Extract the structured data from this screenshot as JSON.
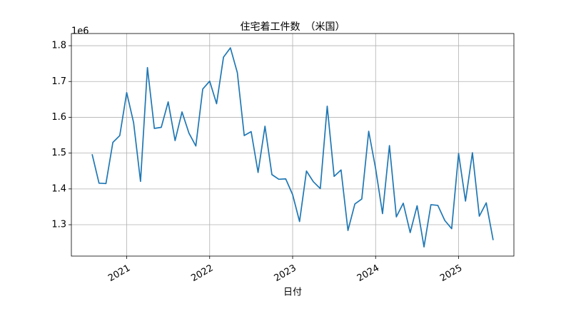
{
  "chart_data": {
    "type": "line",
    "title": "住宅着工件数　（米国）",
    "xlabel": "日付",
    "y_offset_label": "1e6",
    "color": "#1f77b4",
    "grid": true,
    "x": [
      "2020-08",
      "2020-09",
      "2020-10",
      "2020-11",
      "2020-12",
      "2021-01",
      "2021-02",
      "2021-03",
      "2021-04",
      "2021-05",
      "2021-06",
      "2021-07",
      "2021-08",
      "2021-09",
      "2021-10",
      "2021-11",
      "2021-12",
      "2022-01",
      "2022-02",
      "2022-03",
      "2022-04",
      "2022-05",
      "2022-06",
      "2022-07",
      "2022-08",
      "2022-09",
      "2022-10",
      "2022-11",
      "2022-12",
      "2023-01",
      "2023-02",
      "2023-03",
      "2023-04",
      "2023-05",
      "2023-06",
      "2023-07",
      "2023-08",
      "2023-09",
      "2023-10",
      "2023-11",
      "2023-12",
      "2024-01",
      "2024-02",
      "2024-03",
      "2024-04",
      "2024-05",
      "2024-06",
      "2024-07",
      "2024-08",
      "2024-09",
      "2024-10",
      "2024-11",
      "2024-12",
      "2025-01",
      "2025-02",
      "2025-03",
      "2025-04",
      "2025-05",
      "2025-06"
    ],
    "values": [
      1497000,
      1416000,
      1415000,
      1530000,
      1549000,
      1669000,
      1585000,
      1421000,
      1739000,
      1569000,
      1572000,
      1643000,
      1535000,
      1615000,
      1556000,
      1520000,
      1679000,
      1701000,
      1638000,
      1768000,
      1794000,
      1725000,
      1549000,
      1560000,
      1446000,
      1575000,
      1440000,
      1427000,
      1428000,
      1384000,
      1309000,
      1450000,
      1420000,
      1401000,
      1631000,
      1435000,
      1453000,
      1284000,
      1358000,
      1372000,
      1561000,
      1457000,
      1331000,
      1521000,
      1322000,
      1360000,
      1278000,
      1353000,
      1238000,
      1356000,
      1354000,
      1312000,
      1289000,
      1499000,
      1366000,
      1501000,
      1324000,
      1361000,
      1257000
    ],
    "xlim": [
      "2020-05",
      "2025-09"
    ],
    "xticks": [
      {
        "value": "2021-01",
        "label": "2021"
      },
      {
        "value": "2022-01",
        "label": "2022"
      },
      {
        "value": "2023-01",
        "label": "2023"
      },
      {
        "value": "2024-01",
        "label": "2024"
      },
      {
        "value": "2025-01",
        "label": "2025"
      }
    ],
    "ylim": [
      1212400,
      1834000
    ],
    "yticks": [
      {
        "value": 1300000,
        "label": "1.3"
      },
      {
        "value": 1400000,
        "label": "1.4"
      },
      {
        "value": 1500000,
        "label": "1.5"
      },
      {
        "value": 1600000,
        "label": "1.6"
      },
      {
        "value": 1700000,
        "label": "1.7"
      },
      {
        "value": 1800000,
        "label": "1.8"
      }
    ]
  }
}
